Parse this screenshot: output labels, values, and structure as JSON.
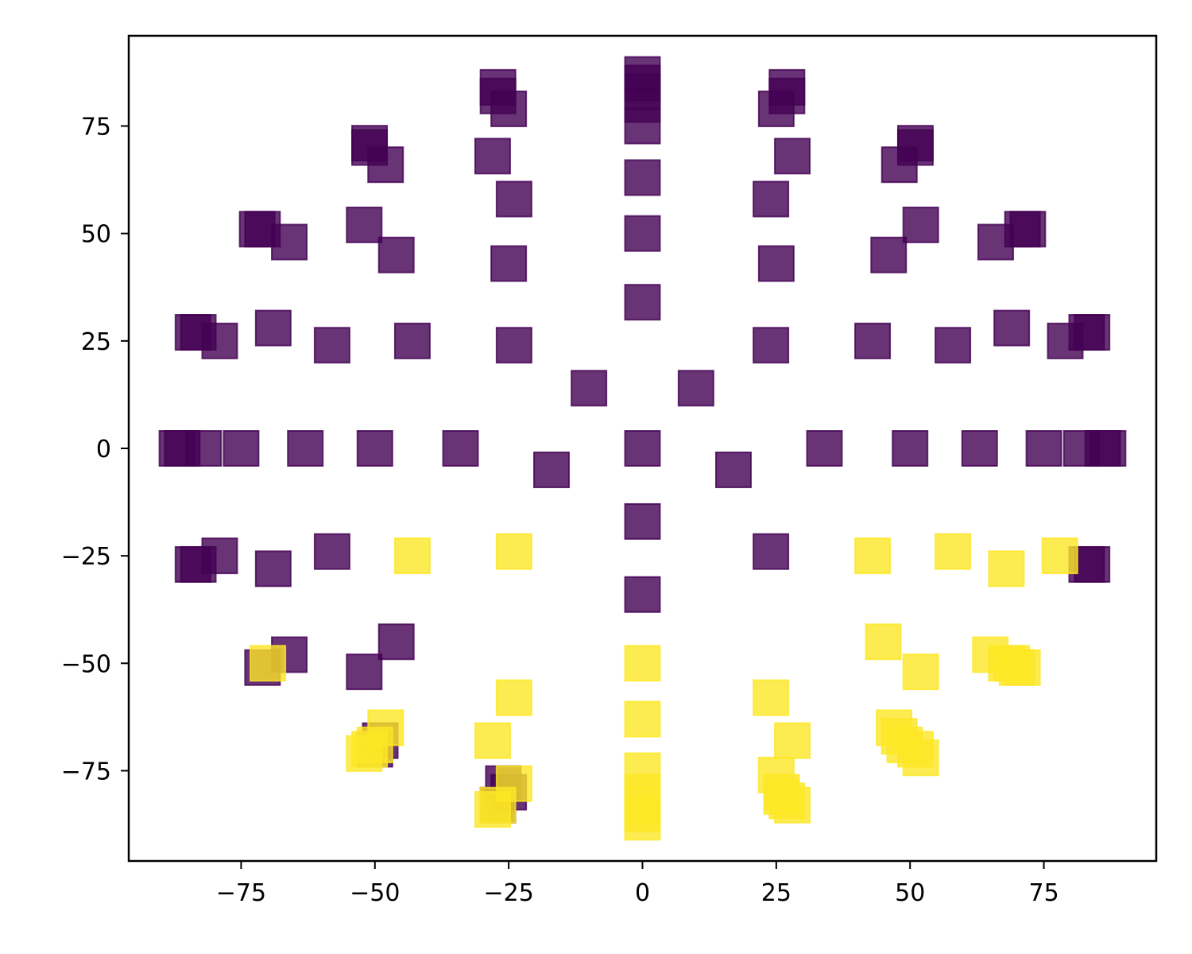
{
  "chart_data": {
    "type": "scatter",
    "title": "",
    "xlabel": "",
    "ylabel": "",
    "xlim": [
      -96,
      96
    ],
    "ylim": [
      -96,
      96
    ],
    "x_ticks": [
      -75,
      -50,
      -25,
      0,
      25,
      50,
      75
    ],
    "y_ticks": [
      -75,
      -50,
      -25,
      0,
      25,
      50,
      75
    ],
    "x_tick_labels": [
      "−75",
      "−50",
      "−25",
      "0",
      "25",
      "50",
      "75"
    ],
    "y_tick_labels": [
      "−75",
      "−50",
      "−25",
      "0",
      "25",
      "50",
      "75"
    ],
    "grid": false,
    "legend": "none",
    "marker": "square",
    "colors": {
      "purple": "#440154",
      "yellow": "#fde725"
    },
    "alpha": 0.8,
    "series": [
      {
        "color_key": "purple",
        "points": [
          [
            0,
            87
          ],
          [
            0,
            85
          ],
          [
            0,
            83
          ],
          [
            0,
            80
          ],
          [
            0,
            75
          ],
          [
            0,
            63
          ],
          [
            0,
            50
          ],
          [
            0,
            34
          ],
          [
            0,
            0
          ],
          [
            0,
            -17
          ],
          [
            0,
            -34
          ],
          [
            -27,
            84
          ],
          [
            -27,
            82
          ],
          [
            -25,
            79
          ],
          [
            -28,
            68
          ],
          [
            -24,
            58
          ],
          [
            -25,
            43
          ],
          [
            -24,
            24
          ],
          [
            27,
            84
          ],
          [
            27,
            82
          ],
          [
            25,
            79
          ],
          [
            28,
            68
          ],
          [
            24,
            58
          ],
          [
            25,
            43
          ],
          [
            24,
            24
          ],
          [
            24,
            -24
          ],
          [
            -51,
            71
          ],
          [
            -51,
            70
          ],
          [
            -48,
            66
          ],
          [
            -52,
            52
          ],
          [
            -46,
            45
          ],
          [
            -58,
            24
          ],
          [
            -43,
            25
          ],
          [
            51,
            71
          ],
          [
            51,
            70
          ],
          [
            48,
            66
          ],
          [
            52,
            52
          ],
          [
            46,
            45
          ],
          [
            43,
            25
          ],
          [
            58,
            24
          ],
          [
            -72,
            51
          ],
          [
            -71,
            51
          ],
          [
            -66,
            48
          ],
          [
            -69,
            28
          ],
          [
            -84,
            27
          ],
          [
            -83,
            27
          ],
          [
            -79,
            25
          ],
          [
            72,
            51
          ],
          [
            71,
            51
          ],
          [
            66,
            48
          ],
          [
            69,
            28
          ],
          [
            84,
            27
          ],
          [
            83,
            27
          ],
          [
            79,
            25
          ],
          [
            -87,
            0
          ],
          [
            -86,
            0
          ],
          [
            -82,
            0
          ],
          [
            -75,
            0
          ],
          [
            -63,
            0
          ],
          [
            -50,
            0
          ],
          [
            -34,
            0
          ],
          [
            -17,
            -5
          ],
          [
            -10,
            14
          ],
          [
            10,
            14
          ],
          [
            17,
            -5
          ],
          [
            34,
            0
          ],
          [
            50,
            0
          ],
          [
            63,
            0
          ],
          [
            75,
            0
          ],
          [
            82,
            0
          ],
          [
            86,
            0
          ],
          [
            87,
            0
          ],
          [
            -84,
            -27
          ],
          [
            -83,
            -27
          ],
          [
            -79,
            -25
          ],
          [
            -69,
            -28
          ],
          [
            -58,
            -24
          ],
          [
            84,
            -27
          ],
          [
            83,
            -27
          ],
          [
            -71,
            -51
          ],
          [
            -66,
            -48
          ],
          [
            -52,
            -52
          ],
          [
            -46,
            -45
          ],
          [
            -50,
            -70
          ],
          [
            -49,
            -68
          ],
          [
            -26,
            -78
          ],
          [
            -25,
            -80
          ],
          [
            -27,
            -83
          ]
        ]
      },
      {
        "color_key": "yellow",
        "points": [
          [
            -43,
            -25
          ],
          [
            -24,
            -24
          ],
          [
            43,
            -25
          ],
          [
            58,
            -24
          ],
          [
            68,
            -28
          ],
          [
            78,
            -25
          ],
          [
            -70,
            -50
          ],
          [
            45,
            -45
          ],
          [
            52,
            -52
          ],
          [
            65,
            -48
          ],
          [
            68,
            -50
          ],
          [
            69,
            -50
          ],
          [
            70,
            -51
          ],
          [
            71,
            -51
          ],
          [
            -48,
            -65
          ],
          [
            -50,
            -69
          ],
          [
            -52,
            -71
          ],
          [
            -51,
            -70
          ],
          [
            -28,
            -68
          ],
          [
            -24,
            -58
          ],
          [
            -24,
            -78
          ],
          [
            -27,
            -83
          ],
          [
            -28,
            -84
          ],
          [
            24,
            -58
          ],
          [
            28,
            -68
          ],
          [
            25,
            -76
          ],
          [
            26,
            -80
          ],
          [
            27,
            -82
          ],
          [
            26,
            -81
          ],
          [
            28,
            -83
          ],
          [
            47,
            -65
          ],
          [
            48,
            -67
          ],
          [
            49,
            -69
          ],
          [
            51,
            -70
          ],
          [
            52,
            -72
          ],
          [
            0,
            -50
          ],
          [
            0,
            -63
          ],
          [
            0,
            -75
          ],
          [
            0,
            -80
          ],
          [
            0,
            -83
          ],
          [
            0,
            -85
          ],
          [
            0,
            -87
          ]
        ]
      }
    ]
  }
}
